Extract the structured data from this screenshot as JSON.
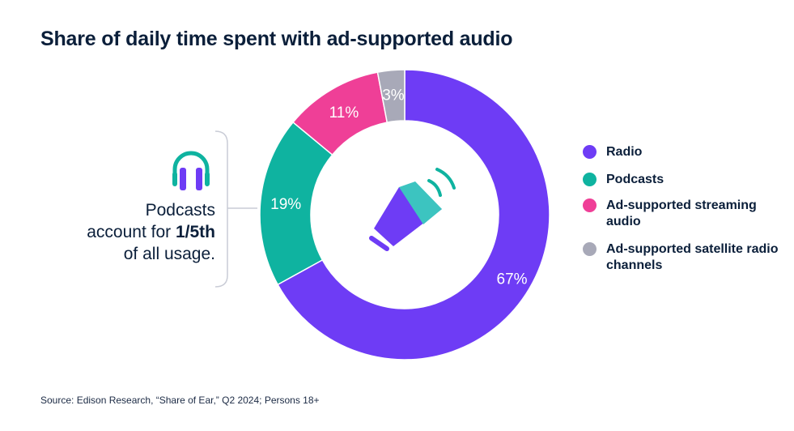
{
  "title": "Share of daily time spent with ad-supported audio",
  "callout": {
    "line1": "Podcasts",
    "line2_prefix": "account for ",
    "line2_bold": "1/5th",
    "line3": "of all usage.",
    "icon": "headphones-icon"
  },
  "center_icon": "megaphone-icon",
  "source": "Source: Edison Research, “Share of Ear,” Q2 2024; Persons 18+",
  "colors": {
    "radio": "#6e3cf5",
    "podcasts": "#0fb3a0",
    "streaming": "#ef3f97",
    "satellite": "#a8a9b8",
    "text": "#0b1f3a"
  },
  "chart_data": {
    "type": "pie",
    "title": "Share of daily time spent with ad-supported audio",
    "donut": true,
    "categories": [
      "Radio",
      "Podcasts",
      "Ad-supported streaming audio",
      "Ad-supported satellite radio channels"
    ],
    "values": [
      67,
      19,
      11,
      3
    ],
    "labels": [
      "67%",
      "19%",
      "11%",
      "3%"
    ],
    "legend": [
      {
        "label": "Radio",
        "color": "#6e3cf5"
      },
      {
        "label": "Podcasts",
        "color": "#0fb3a0"
      },
      {
        "label": "Ad-supported streaming audio",
        "color": "#ef3f97"
      },
      {
        "label": "Ad-supported satellite radio channels",
        "color": "#a8a9b8"
      }
    ],
    "legend_position": "right"
  }
}
